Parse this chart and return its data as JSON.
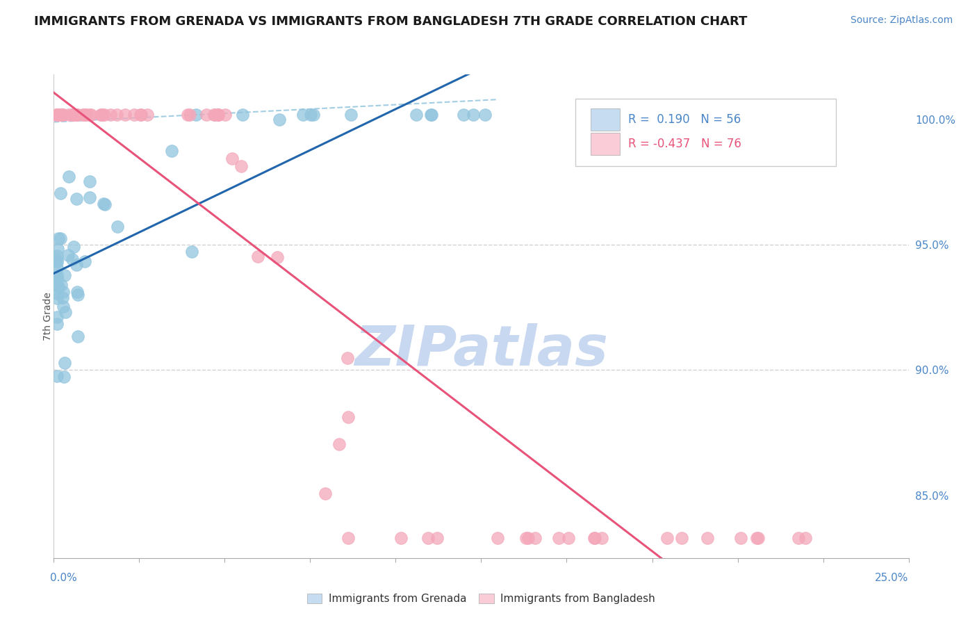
{
  "title": "IMMIGRANTS FROM GRENADA VS IMMIGRANTS FROM BANGLADESH 7TH GRADE CORRELATION CHART",
  "source": "Source: ZipAtlas.com",
  "ylabel": "7th Grade",
  "right_yticklabels": [
    "100.0%",
    "95.0%",
    "90.0%",
    "85.0%"
  ],
  "right_ytick_vals": [
    1.0,
    0.95,
    0.9,
    0.85
  ],
  "xlim": [
    0.0,
    0.25
  ],
  "ylim": [
    0.825,
    1.018
  ],
  "R_grenada": 0.19,
  "N_grenada": 56,
  "R_bangladesh": -0.437,
  "N_bangladesh": 76,
  "color_grenada": "#92c5de",
  "color_bangladesh": "#f4a7b9",
  "trendline_grenada_color": "#2166ac",
  "trendline_bangladesh_color": "#e8537a",
  "dashed_line_color": "#92c5de",
  "legend_fill_grenada": "#c6dcf0",
  "legend_fill_bangladesh": "#f9ccd8",
  "watermark": "ZIPatlas",
  "watermark_color": "#c8d8f0",
  "title_fontsize": 13,
  "source_fontsize": 10,
  "ylabel_fontsize": 10,
  "tick_fontsize": 11,
  "legend_fontsize": 11,
  "annot_fontsize": 12,
  "seed": 99
}
